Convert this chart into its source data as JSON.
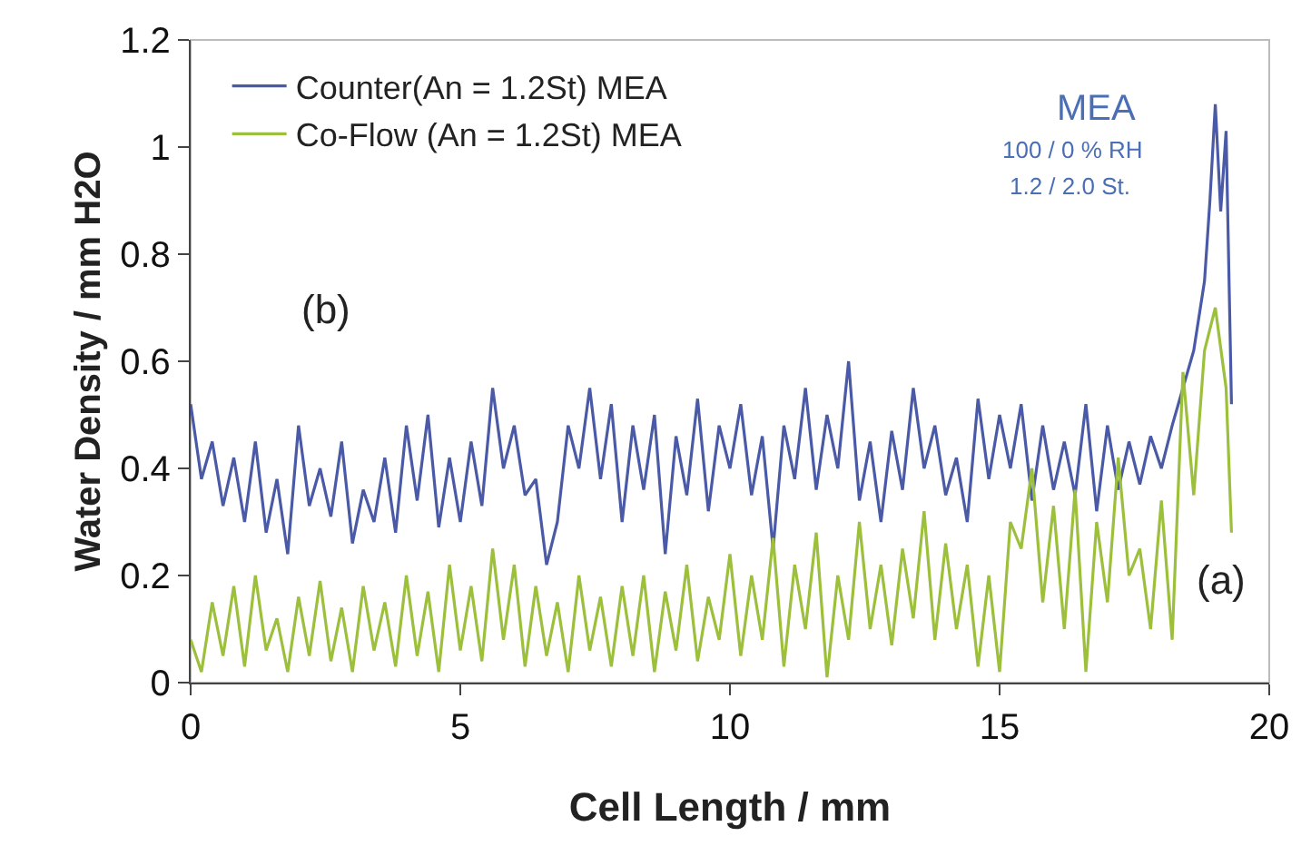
{
  "chart_data": {
    "type": "line",
    "xlabel": "Cell Length / mm",
    "ylabel": "Water Density / mm H2O",
    "xlim": [
      0,
      20
    ],
    "xticks": [
      0,
      5,
      10,
      15,
      20
    ],
    "ylim": [
      0,
      1.2
    ],
    "yticks": [
      0,
      0.2,
      0.4,
      0.6,
      0.8,
      1,
      1.2
    ],
    "grid": false,
    "legend": "top left",
    "marker": "none",
    "line_style": "solid",
    "annotations": [
      "(b)",
      "(a)",
      "MEA",
      "100 / 0 % RH",
      "1.2 / 2.0 St."
    ],
    "series": [
      {
        "name": "Counter(An = 1.2St) MEA",
        "color": "#4a5aa6",
        "x": [
          0,
          0.2,
          0.4,
          0.6,
          0.8,
          1,
          1.2,
          1.4,
          1.6,
          1.8,
          2,
          2.2,
          2.4,
          2.6,
          2.8,
          3,
          3.2,
          3.4,
          3.6,
          3.8,
          4,
          4.2,
          4.4,
          4.6,
          4.8,
          5,
          5.2,
          5.4,
          5.6,
          5.8,
          6,
          6.2,
          6.4,
          6.6,
          6.8,
          7,
          7.2,
          7.4,
          7.6,
          7.8,
          8,
          8.2,
          8.4,
          8.6,
          8.8,
          9,
          9.2,
          9.4,
          9.6,
          9.8,
          10,
          10.2,
          10.4,
          10.6,
          10.8,
          11,
          11.2,
          11.4,
          11.6,
          11.8,
          12,
          12.2,
          12.4,
          12.6,
          12.8,
          13,
          13.2,
          13.4,
          13.6,
          13.8,
          14,
          14.2,
          14.4,
          14.6,
          14.8,
          15,
          15.2,
          15.4,
          15.6,
          15.8,
          16,
          16.2,
          16.4,
          16.6,
          16.8,
          17,
          17.2,
          17.4,
          17.6,
          17.8,
          18,
          18.2,
          18.4,
          18.6,
          18.8,
          18.9,
          19,
          19.1,
          19.2,
          19.3
        ],
        "values": [
          0.52,
          0.38,
          0.45,
          0.33,
          0.42,
          0.3,
          0.45,
          0.28,
          0.38,
          0.24,
          0.48,
          0.33,
          0.4,
          0.31,
          0.45,
          0.26,
          0.36,
          0.3,
          0.42,
          0.28,
          0.48,
          0.34,
          0.5,
          0.29,
          0.42,
          0.3,
          0.45,
          0.33,
          0.55,
          0.4,
          0.48,
          0.35,
          0.38,
          0.22,
          0.3,
          0.48,
          0.4,
          0.55,
          0.38,
          0.52,
          0.3,
          0.48,
          0.36,
          0.5,
          0.24,
          0.46,
          0.35,
          0.53,
          0.32,
          0.48,
          0.4,
          0.52,
          0.35,
          0.46,
          0.25,
          0.48,
          0.38,
          0.55,
          0.36,
          0.5,
          0.4,
          0.6,
          0.34,
          0.45,
          0.3,
          0.47,
          0.36,
          0.55,
          0.4,
          0.48,
          0.35,
          0.42,
          0.3,
          0.53,
          0.38,
          0.5,
          0.4,
          0.52,
          0.34,
          0.48,
          0.36,
          0.45,
          0.35,
          0.52,
          0.32,
          0.48,
          0.36,
          0.45,
          0.37,
          0.46,
          0.4,
          0.48,
          0.55,
          0.62,
          0.75,
          0.9,
          1.08,
          0.88,
          1.03,
          0.52
        ]
      },
      {
        "name": "Co-Flow (An = 1.2St) MEA",
        "color": "#9cbf3c",
        "x": [
          0,
          0.2,
          0.4,
          0.6,
          0.8,
          1,
          1.2,
          1.4,
          1.6,
          1.8,
          2,
          2.2,
          2.4,
          2.6,
          2.8,
          3,
          3.2,
          3.4,
          3.6,
          3.8,
          4,
          4.2,
          4.4,
          4.6,
          4.8,
          5,
          5.2,
          5.4,
          5.6,
          5.8,
          6,
          6.2,
          6.4,
          6.6,
          6.8,
          7,
          7.2,
          7.4,
          7.6,
          7.8,
          8,
          8.2,
          8.4,
          8.6,
          8.8,
          9,
          9.2,
          9.4,
          9.6,
          9.8,
          10,
          10.2,
          10.4,
          10.6,
          10.8,
          11,
          11.2,
          11.4,
          11.6,
          11.8,
          12,
          12.2,
          12.4,
          12.6,
          12.8,
          13,
          13.2,
          13.4,
          13.6,
          13.8,
          14,
          14.2,
          14.4,
          14.6,
          14.8,
          15,
          15.2,
          15.4,
          15.6,
          15.8,
          16,
          16.2,
          16.4,
          16.6,
          16.8,
          17,
          17.2,
          17.4,
          17.6,
          17.8,
          18,
          18.2,
          18.4,
          18.6,
          18.8,
          19,
          19.2,
          19.3
        ],
        "values": [
          0.08,
          0.02,
          0.15,
          0.05,
          0.18,
          0.03,
          0.2,
          0.06,
          0.12,
          0.02,
          0.16,
          0.05,
          0.19,
          0.04,
          0.14,
          0.02,
          0.18,
          0.06,
          0.15,
          0.03,
          0.2,
          0.05,
          0.17,
          0.02,
          0.22,
          0.06,
          0.18,
          0.04,
          0.25,
          0.08,
          0.22,
          0.03,
          0.18,
          0.05,
          0.15,
          0.02,
          0.2,
          0.06,
          0.16,
          0.03,
          0.18,
          0.05,
          0.2,
          0.02,
          0.17,
          0.06,
          0.22,
          0.04,
          0.16,
          0.08,
          0.24,
          0.05,
          0.2,
          0.08,
          0.27,
          0.03,
          0.22,
          0.1,
          0.28,
          0.01,
          0.2,
          0.08,
          0.3,
          0.1,
          0.22,
          0.07,
          0.25,
          0.12,
          0.32,
          0.08,
          0.26,
          0.1,
          0.22,
          0.03,
          0.2,
          0.02,
          0.3,
          0.25,
          0.4,
          0.15,
          0.33,
          0.1,
          0.36,
          0.02,
          0.3,
          0.15,
          0.42,
          0.2,
          0.25,
          0.1,
          0.34,
          0.08,
          0.58,
          0.35,
          0.62,
          0.7,
          0.55,
          0.28
        ]
      }
    ]
  }
}
